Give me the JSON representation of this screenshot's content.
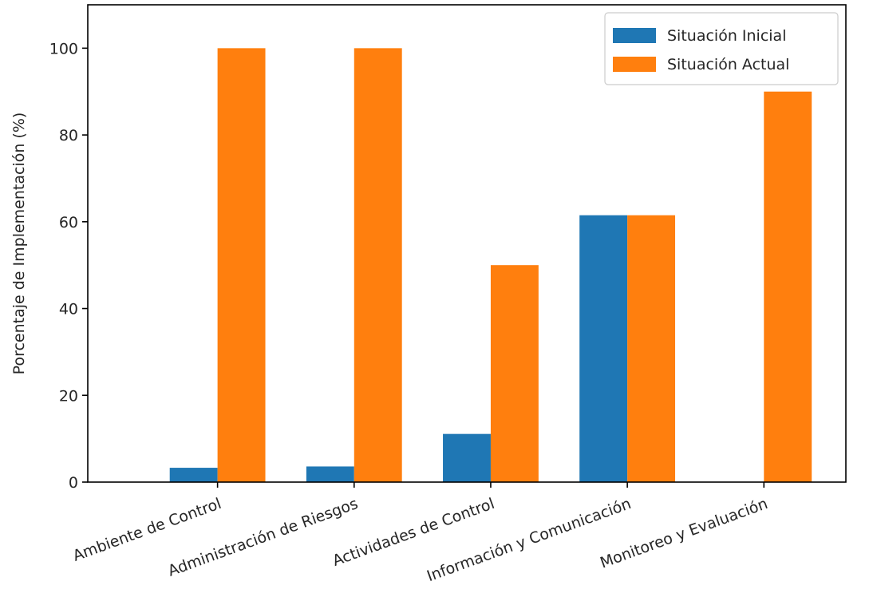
{
  "chart_data": {
    "type": "bar",
    "title": "",
    "xlabel": "",
    "ylabel": "Porcentaje de Implementación (%)",
    "ylim": [
      0,
      110
    ],
    "yticks": [
      0,
      20,
      40,
      60,
      80,
      100
    ],
    "grid": false,
    "legend_position": "top-right",
    "categories": [
      "Ambiente de Control",
      "Administración de Riesgos",
      "Actividades de Control",
      "Información y Comunicación",
      "Monitoreo y Evaluación"
    ],
    "series": [
      {
        "name": "Situación Inicial",
        "color": "#1f77b4",
        "values": [
          3.3,
          3.6,
          11.1,
          61.5,
          0
        ]
      },
      {
        "name": "Situación Actual",
        "color": "#ff7f0e",
        "values": [
          100,
          100,
          50,
          61.5,
          90
        ]
      }
    ]
  }
}
